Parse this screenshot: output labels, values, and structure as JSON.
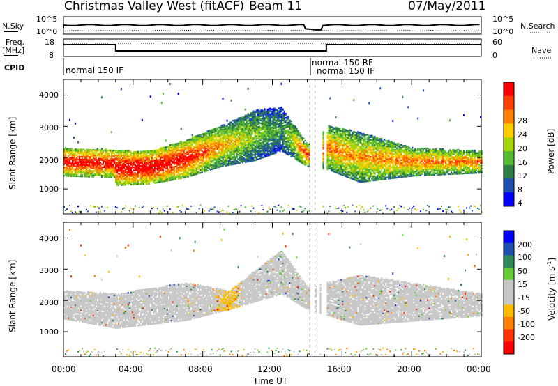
{
  "header": {
    "station": "Christmas Valley West (fitACF)",
    "beam": "Beam 11",
    "date": "07/May/2011"
  },
  "top_panels": {
    "nsky_label": "N.Sky",
    "nsky_ticks": [
      "10^5",
      "10^0"
    ],
    "nsearch_label": "N.Search",
    "nsearch_ticks": [
      "10^5",
      "10^0"
    ],
    "freq_label": "Freq.",
    "freq_unit": "[MHz]",
    "freq_ticks": [
      "18",
      "8"
    ],
    "nave_label": "Nave",
    "nave_ticks": [
      "60",
      "0"
    ],
    "cpid_label": "CPID",
    "cpid_labels": [
      "normal 150 IF",
      "normal 150 RF",
      "normal 150 IF"
    ]
  },
  "time_axis": {
    "label": "Time UT",
    "ticks": [
      "00:00",
      "04:00",
      "08:00",
      "12:00",
      "16:00",
      "20:00",
      "00:00"
    ]
  },
  "colors": {
    "power_scale": [
      "#0000ff",
      "#1d4fb0",
      "#2e7d46",
      "#55bb33",
      "#a6d608",
      "#ffcc00",
      "#ff8000",
      "#ff4000",
      "#ff0000"
    ],
    "velocity_scale": [
      "#ff0000",
      "#ff3300",
      "#ff8000",
      "#ffbb00",
      "#c8c8c8",
      "#c8c8c8",
      "#66cc33",
      "#2e8b57",
      "#1d4fb0",
      "#0000ff"
    ]
  },
  "chart_data": [
    {
      "type": "heatmap",
      "title": "",
      "xlabel": "Time UT",
      "ylabel": "Slant Range [km]",
      "xlim": [
        "00:00",
        "24:00"
      ],
      "ylim": [
        200,
        4500
      ],
      "yticks": [
        "4000",
        "3000",
        "2000",
        "1000"
      ],
      "colorbar_label": "Power [dB]",
      "colorbar_ticks": [
        "28",
        "24",
        "20",
        "16",
        "12",
        "8",
        "4"
      ],
      "colorbar_range": [
        0,
        32
      ],
      "echo_band": [
        {
          "t": 0.0,
          "low": 1400,
          "high": 2300,
          "power": 26
        },
        {
          "t": 2.9,
          "low": 1350,
          "high": 2250,
          "power": 26
        },
        {
          "t": 3.0,
          "low": 1100,
          "high": 2200,
          "power": 28
        },
        {
          "t": 5.0,
          "low": 1150,
          "high": 2200,
          "power": 28
        },
        {
          "t": 7.0,
          "low": 1350,
          "high": 2550,
          "power": 26
        },
        {
          "t": 9.0,
          "low": 1700,
          "high": 3000,
          "power": 18
        },
        {
          "t": 11.0,
          "low": 1900,
          "high": 3500,
          "power": 12
        },
        {
          "t": 12.5,
          "low": 2200,
          "high": 3600,
          "power": 8
        },
        {
          "t": 14.0,
          "low": 1700,
          "high": 2400,
          "power": 24
        },
        {
          "t": 15.2,
          "low": 1600,
          "high": 3000,
          "power": 20
        },
        {
          "t": 17.0,
          "low": 1200,
          "high": 2800,
          "power": 18
        },
        {
          "t": 20.0,
          "low": 1400,
          "high": 2300,
          "power": 20
        },
        {
          "t": 24.0,
          "low": 1500,
          "high": 2200,
          "power": 20
        }
      ]
    },
    {
      "type": "heatmap",
      "title": "",
      "xlabel": "Time UT",
      "ylabel": "Slant Range [km]",
      "xlim": [
        "00:00",
        "24:00"
      ],
      "ylim": [
        200,
        4500
      ],
      "yticks": [
        "4000",
        "3000",
        "2000",
        "1000"
      ],
      "colorbar_label": "Velocity [m s⁻¹]",
      "colorbar_unit_parts": [
        "Velocity [m s",
        "-1",
        "]"
      ],
      "colorbar_ticks": [
        "200",
        "100",
        "50",
        "15",
        "-15",
        "-50",
        "-100",
        "-200"
      ],
      "colorbar_range": [
        -250,
        250
      ],
      "echo_band": [
        {
          "t": 0.0,
          "low": 1400,
          "high": 2300,
          "velocity": 0
        },
        {
          "t": 3.0,
          "low": 1100,
          "high": 2200,
          "velocity": 0
        },
        {
          "t": 7.0,
          "low": 1350,
          "high": 2550,
          "velocity": 0
        },
        {
          "t": 9.5,
          "low": 1700,
          "high": 2300,
          "velocity": -60
        },
        {
          "t": 12.5,
          "low": 2200,
          "high": 3600,
          "velocity": 40
        },
        {
          "t": 14.0,
          "low": 1700,
          "high": 2400,
          "velocity": 0
        },
        {
          "t": 17.0,
          "low": 1200,
          "high": 2800,
          "velocity": 0
        },
        {
          "t": 24.0,
          "low": 1500,
          "high": 2200,
          "velocity": 0
        }
      ]
    }
  ]
}
